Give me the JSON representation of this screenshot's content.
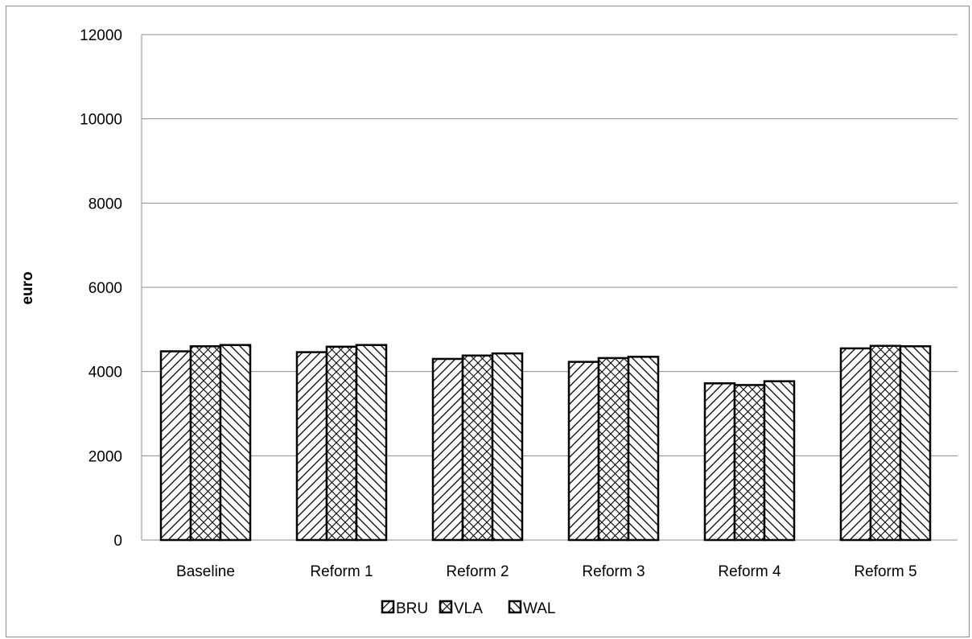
{
  "chart_data": {
    "type": "bar",
    "title": "",
    "xlabel": "",
    "ylabel": "euro",
    "ylim": [
      0,
      12000
    ],
    "yticks": [
      0,
      2000,
      4000,
      6000,
      8000,
      10000,
      12000
    ],
    "grid": true,
    "legend_position": "bottom",
    "categories": [
      "Baseline",
      "Reform 1",
      "Reform 2",
      "Reform 3",
      "Reform 4",
      "Reform 5"
    ],
    "series": [
      {
        "name": "BRU",
        "pattern": "diagonal-forward",
        "color": "#000000",
        "values": [
          4480,
          4460,
          4300,
          4230,
          3720,
          4550
        ]
      },
      {
        "name": "VLA",
        "pattern": "crosshatch",
        "color": "#000000",
        "values": [
          4600,
          4590,
          4380,
          4320,
          3680,
          4610
        ]
      },
      {
        "name": "WAL",
        "pattern": "diagonal-back",
        "color": "#000000",
        "values": [
          4630,
          4630,
          4430,
          4350,
          3770,
          4600
        ]
      }
    ]
  }
}
